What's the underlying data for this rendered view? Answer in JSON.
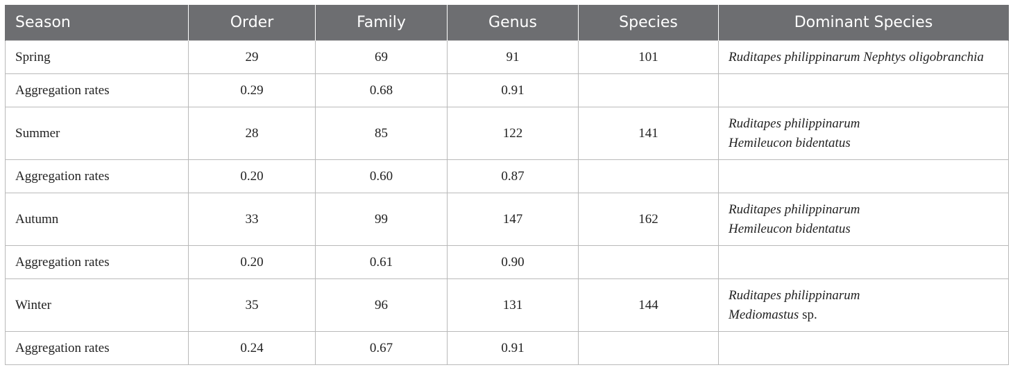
{
  "table": {
    "headers": [
      "Season",
      "Order",
      "Family",
      "Genus",
      "Species",
      "Dominant Species"
    ],
    "rows": [
      {
        "season": "Spring",
        "order": "29",
        "family": "69",
        "genus": "91",
        "species": "101",
        "dominant": [
          "Ruditapes philippinarum Nephtys oligobranchia"
        ]
      },
      {
        "season": "Aggregation rates",
        "order": "0.29",
        "family": "0.68",
        "genus": "0.91",
        "species": "",
        "dominant": []
      },
      {
        "season": "Summer",
        "order": "28",
        "family": "85",
        "genus": "122",
        "species": "141",
        "dominant": [
          "Ruditapes philippinarum",
          "Hemileucon bidentatus"
        ]
      },
      {
        "season": "Aggregation rates",
        "order": "0.20",
        "family": "0.60",
        "genus": "0.87",
        "species": "",
        "dominant": []
      },
      {
        "season": "Autumn",
        "order": "33",
        "family": "99",
        "genus": "147",
        "species": "162",
        "dominant": [
          "Ruditapes philippinarum",
          "Hemileucon bidentatus"
        ]
      },
      {
        "season": "Aggregation rates",
        "order": "0.20",
        "family": "0.61",
        "genus": "0.90",
        "species": "",
        "dominant": []
      },
      {
        "season": "Winter",
        "order": "35",
        "family": "96",
        "genus": "131",
        "species": "144",
        "dominant": [
          "Ruditapes philippinarum",
          "Mediomastus"
        ],
        "dominant_suffix": " sp."
      },
      {
        "season": "Aggregation rates",
        "order": "0.24",
        "family": "0.67",
        "genus": "0.91",
        "species": "",
        "dominant": []
      }
    ]
  },
  "colors": {
    "header_bg": "#6d6e71",
    "header_text": "#ffffff",
    "border": "#b9b9b9"
  }
}
